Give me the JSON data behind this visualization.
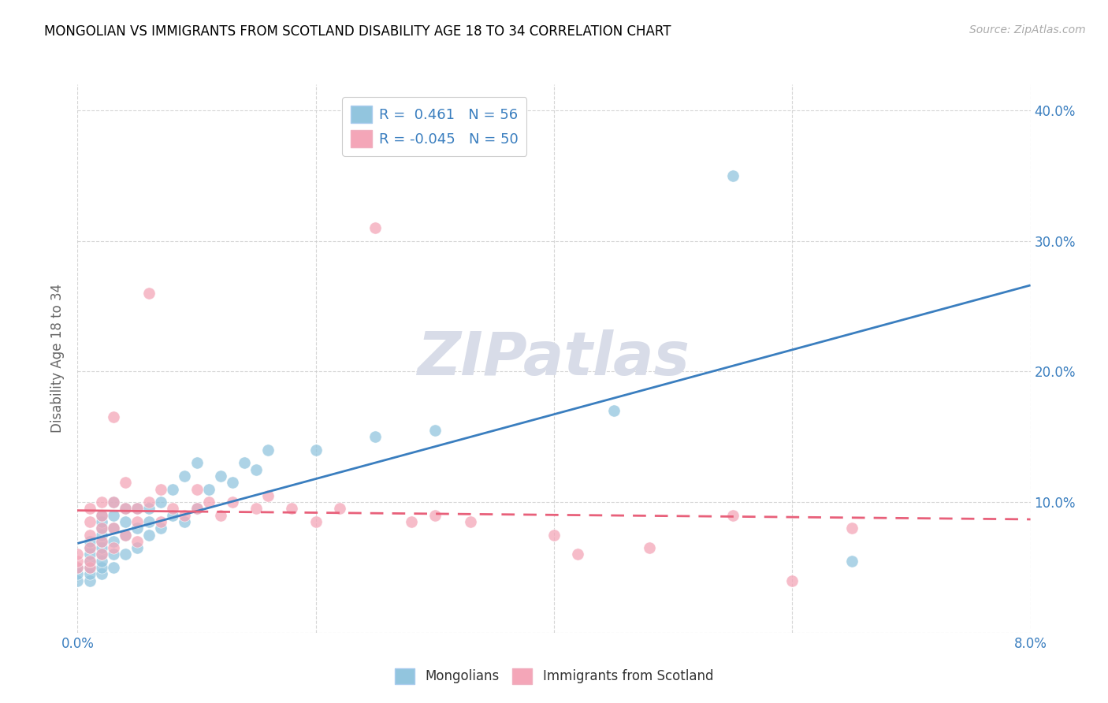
{
  "title": "MONGOLIAN VS IMMIGRANTS FROM SCOTLAND DISABILITY AGE 18 TO 34 CORRELATION CHART",
  "source": "Source: ZipAtlas.com",
  "ylabel": "Disability Age 18 to 34",
  "xlim": [
    0.0,
    0.08
  ],
  "ylim": [
    0.0,
    0.42
  ],
  "xtick_positions": [
    0.0,
    0.02,
    0.04,
    0.06,
    0.08
  ],
  "ytick_positions": [
    0.0,
    0.1,
    0.2,
    0.3,
    0.4
  ],
  "mongolian_R": 0.461,
  "mongolian_N": 56,
  "scotland_R": -0.045,
  "scotland_N": 50,
  "blue_scatter_color": "#92c5de",
  "pink_scatter_color": "#f4a6b8",
  "blue_line_color": "#3a7ebf",
  "pink_line_color": "#e8607a",
  "legend_text_color": "#3a7ebf",
  "tick_label_color": "#3a7ebf",
  "axis_label_color": "#666666",
  "watermark_color": "#d8dce8",
  "mongolians_x": [
    0.0,
    0.0,
    0.0,
    0.001,
    0.001,
    0.001,
    0.001,
    0.001,
    0.001,
    0.001,
    0.002,
    0.002,
    0.002,
    0.002,
    0.002,
    0.002,
    0.002,
    0.002,
    0.002,
    0.002,
    0.003,
    0.003,
    0.003,
    0.003,
    0.003,
    0.003,
    0.004,
    0.004,
    0.004,
    0.004,
    0.005,
    0.005,
    0.005,
    0.006,
    0.006,
    0.006,
    0.007,
    0.007,
    0.008,
    0.008,
    0.009,
    0.009,
    0.01,
    0.01,
    0.011,
    0.012,
    0.013,
    0.014,
    0.015,
    0.016,
    0.02,
    0.025,
    0.03,
    0.045,
    0.055,
    0.065
  ],
  "mongolians_y": [
    0.04,
    0.045,
    0.05,
    0.04,
    0.045,
    0.05,
    0.055,
    0.06,
    0.065,
    0.07,
    0.045,
    0.05,
    0.055,
    0.06,
    0.065,
    0.07,
    0.075,
    0.08,
    0.085,
    0.09,
    0.05,
    0.06,
    0.07,
    0.08,
    0.09,
    0.1,
    0.06,
    0.075,
    0.085,
    0.095,
    0.065,
    0.08,
    0.095,
    0.075,
    0.085,
    0.095,
    0.08,
    0.1,
    0.09,
    0.11,
    0.085,
    0.12,
    0.095,
    0.13,
    0.11,
    0.12,
    0.115,
    0.13,
    0.125,
    0.14,
    0.14,
    0.15,
    0.155,
    0.17,
    0.35,
    0.055
  ],
  "scotland_x": [
    0.0,
    0.0,
    0.0,
    0.001,
    0.001,
    0.001,
    0.001,
    0.001,
    0.001,
    0.002,
    0.002,
    0.002,
    0.002,
    0.002,
    0.003,
    0.003,
    0.003,
    0.003,
    0.004,
    0.004,
    0.004,
    0.005,
    0.005,
    0.005,
    0.006,
    0.006,
    0.007,
    0.007,
    0.008,
    0.009,
    0.01,
    0.01,
    0.011,
    0.012,
    0.013,
    0.015,
    0.016,
    0.018,
    0.02,
    0.022,
    0.025,
    0.028,
    0.03,
    0.033,
    0.04,
    0.042,
    0.048,
    0.055,
    0.06,
    0.065
  ],
  "scotland_y": [
    0.05,
    0.055,
    0.06,
    0.05,
    0.055,
    0.065,
    0.075,
    0.085,
    0.095,
    0.06,
    0.07,
    0.08,
    0.09,
    0.1,
    0.065,
    0.08,
    0.1,
    0.165,
    0.075,
    0.095,
    0.115,
    0.07,
    0.085,
    0.095,
    0.1,
    0.26,
    0.085,
    0.11,
    0.095,
    0.09,
    0.095,
    0.11,
    0.1,
    0.09,
    0.1,
    0.095,
    0.105,
    0.095,
    0.085,
    0.095,
    0.31,
    0.085,
    0.09,
    0.085,
    0.075,
    0.06,
    0.065,
    0.09,
    0.04,
    0.08
  ]
}
